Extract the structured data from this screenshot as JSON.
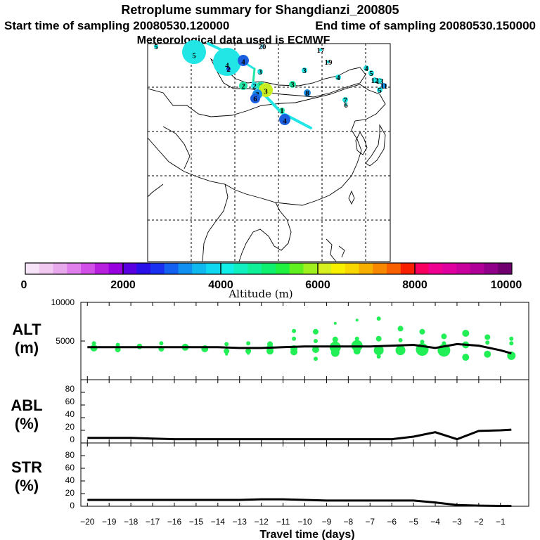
{
  "header": {
    "title": "Retroplume summary for Shangdianzi_200805",
    "start_label": "Start time of sampling 20080530.120000",
    "end_label": "End time of sampling 20080530.150000",
    "met_label": "Meteorological data used is ECMWF"
  },
  "map": {
    "markers": [
      {
        "label": "5",
        "r": 3,
        "color": "#00e8e8"
      },
      {
        "label": "5",
        "r": 17,
        "color": "#22e6e6"
      },
      {
        "label": "4",
        "r": 20,
        "color": "#22e6e6"
      },
      {
        "label": "4",
        "r": 8,
        "color": "#1a5fe0"
      },
      {
        "label": "2",
        "r": 3,
        "color": "#1a3fd0"
      },
      {
        "label": "20",
        "r": 3,
        "color": "#7fe0ff"
      },
      {
        "label": "17",
        "r": 2,
        "color": "#00e8e8"
      },
      {
        "label": "19",
        "r": 2,
        "color": "#00e8e8"
      },
      {
        "label": "3",
        "r": 4,
        "color": "#22e6e6"
      },
      {
        "label": "3",
        "r": 4,
        "color": "#22e6e6"
      },
      {
        "label": "4",
        "r": 4,
        "color": "#22e6e6"
      },
      {
        "label": "4",
        "r": 4,
        "color": "#22e6e6"
      },
      {
        "label": "5",
        "r": 4,
        "color": "#22e6e6"
      },
      {
        "label": "12",
        "r": 4,
        "color": "#22e6e6"
      },
      {
        "label": "13",
        "r": 4,
        "color": "#22e6e6"
      },
      {
        "label": "11",
        "r": 4,
        "color": "#1a8fe8"
      },
      {
        "label": "5",
        "r": 4,
        "color": "#22e6e6"
      },
      {
        "label": "2",
        "r": 6,
        "color": "#22e6a6"
      },
      {
        "label": "2",
        "r": 5,
        "color": "#22e6e6"
      },
      {
        "label": "2",
        "r": 6,
        "color": "#22e6a6"
      },
      {
        "label": "3",
        "r": 10,
        "color": "#c8ee22"
      },
      {
        "label": "3",
        "r": 7,
        "color": "#1a8fe8"
      },
      {
        "label": "6",
        "r": 7,
        "color": "#1a5fe0"
      },
      {
        "label": "3",
        "r": 5,
        "color": "#22e6a6"
      },
      {
        "label": "8",
        "r": 5,
        "color": "#1a8fe8"
      },
      {
        "label": "7",
        "r": 4,
        "color": "#22e6e6"
      },
      {
        "label": "6",
        "r": 2,
        "color": "#22e6e6"
      },
      {
        "label": "1",
        "r": 4,
        "color": "#22e6a6"
      },
      {
        "label": "4",
        "r": 8,
        "color": "#1a5fe0"
      }
    ]
  },
  "colorbar": {
    "colors": [
      "#f8e4f8",
      "#f0c8f0",
      "#e8a8ec",
      "#e080ec",
      "#d050e8",
      "#b820e0",
      "#9800e0",
      "#5a00e0",
      "#2a10e8",
      "#1a30f0",
      "#1460f0",
      "#1090f0",
      "#10b8f0",
      "#10d8f0",
      "#10f0e8",
      "#10f0c0",
      "#10f098",
      "#10f070",
      "#20f040",
      "#60f020",
      "#a0f020",
      "#d8f020",
      "#f8f000",
      "#f8d800",
      "#f8b000",
      "#f88800",
      "#f86000",
      "#f82000",
      "#f80060",
      "#f00090",
      "#e000a0",
      "#c8009c",
      "#b00098",
      "#900088",
      "#700070"
    ],
    "tick_labels": [
      "0",
      "2000",
      "4000",
      "6000",
      "8000",
      "10000"
    ],
    "label": "Altitude (m)"
  },
  "chart_data": [
    {
      "type": "line",
      "panel": "ALT",
      "label": "ALT",
      "unit": "(m)",
      "ylim": [
        0,
        10000
      ],
      "yticks": [
        "10000",
        "5000"
      ],
      "x": [
        -20,
        -19,
        -18,
        -17,
        -16,
        -15,
        -14,
        -13,
        -12,
        -11,
        -10,
        -9,
        -8,
        -7,
        -6,
        -5,
        -4,
        -3,
        -2,
        -1,
        -0.5
      ],
      "series": [
        {
          "name": "mean altitude",
          "values": [
            4200,
            4200,
            4200,
            4200,
            4200,
            4200,
            4200,
            4100,
            4100,
            4200,
            4300,
            4300,
            4300,
            4300,
            4400,
            4500,
            4100,
            4600,
            4400,
            3800,
            3400
          ]
        }
      ],
      "scatter": [
        {
          "x": -19.7,
          "y": 4700,
          "s": 3
        },
        {
          "x": -19.7,
          "y": 4100,
          "s": 5
        },
        {
          "x": -18.6,
          "y": 4500,
          "s": 3
        },
        {
          "x": -18.6,
          "y": 3900,
          "s": 4
        },
        {
          "x": -17.6,
          "y": 4300,
          "s": 4
        },
        {
          "x": -16.6,
          "y": 4700,
          "s": 3
        },
        {
          "x": -16.6,
          "y": 4000,
          "s": 4
        },
        {
          "x": -15.5,
          "y": 4200,
          "s": 5
        },
        {
          "x": -14.6,
          "y": 4000,
          "s": 5
        },
        {
          "x": -13.6,
          "y": 4600,
          "s": 3
        },
        {
          "x": -13.6,
          "y": 3700,
          "s": 4
        },
        {
          "x": -13.6,
          "y": 3300,
          "s": 2
        },
        {
          "x": -12.6,
          "y": 4700,
          "s": 3
        },
        {
          "x": -12.6,
          "y": 3700,
          "s": 4
        },
        {
          "x": -12.6,
          "y": 3400,
          "s": 2
        },
        {
          "x": -11.6,
          "y": 4600,
          "s": 4
        },
        {
          "x": -11.6,
          "y": 4100,
          "s": 5
        },
        {
          "x": -11.6,
          "y": 3700,
          "s": 5
        },
        {
          "x": -10.5,
          "y": 6300,
          "s": 3
        },
        {
          "x": -10.5,
          "y": 5300,
          "s": 3
        },
        {
          "x": -10.5,
          "y": 4000,
          "s": 5
        },
        {
          "x": -10.5,
          "y": 3600,
          "s": 5
        },
        {
          "x": -9.5,
          "y": 6200,
          "s": 4
        },
        {
          "x": -9.5,
          "y": 5000,
          "s": 3
        },
        {
          "x": -9.5,
          "y": 3900,
          "s": 5
        },
        {
          "x": -9.5,
          "y": 2700,
          "s": 3
        },
        {
          "x": -8.6,
          "y": 7300,
          "s": 2
        },
        {
          "x": -8.6,
          "y": 5200,
          "s": 4
        },
        {
          "x": -8.6,
          "y": 4200,
          "s": 8
        },
        {
          "x": -8.6,
          "y": 3500,
          "s": 6
        },
        {
          "x": -7.6,
          "y": 7700,
          "s": 2
        },
        {
          "x": -7.6,
          "y": 5300,
          "s": 3
        },
        {
          "x": -7.6,
          "y": 4400,
          "s": 8
        },
        {
          "x": -7.6,
          "y": 3700,
          "s": 5
        },
        {
          "x": -6.6,
          "y": 7900,
          "s": 3
        },
        {
          "x": -6.6,
          "y": 5300,
          "s": 4
        },
        {
          "x": -6.6,
          "y": 3800,
          "s": 7
        },
        {
          "x": -6.6,
          "y": 3000,
          "s": 3
        },
        {
          "x": -5.6,
          "y": 6600,
          "s": 4
        },
        {
          "x": -5.6,
          "y": 5100,
          "s": 3
        },
        {
          "x": -5.6,
          "y": 3800,
          "s": 7
        },
        {
          "x": -4.6,
          "y": 6200,
          "s": 4
        },
        {
          "x": -4.6,
          "y": 4900,
          "s": 3
        },
        {
          "x": -4.6,
          "y": 3900,
          "s": 9
        },
        {
          "x": -3.6,
          "y": 5600,
          "s": 4
        },
        {
          "x": -3.6,
          "y": 4700,
          "s": 3
        },
        {
          "x": -3.6,
          "y": 3800,
          "s": 9
        },
        {
          "x": -2.6,
          "y": 6000,
          "s": 5
        },
        {
          "x": -2.6,
          "y": 4500,
          "s": 5
        },
        {
          "x": -2.6,
          "y": 2900,
          "s": 5
        },
        {
          "x": -1.6,
          "y": 5500,
          "s": 4
        },
        {
          "x": -1.6,
          "y": 4800,
          "s": 3
        },
        {
          "x": -1.6,
          "y": 3300,
          "s": 5
        },
        {
          "x": -0.5,
          "y": 5300,
          "s": 3
        },
        {
          "x": -0.5,
          "y": 4700,
          "s": 3
        },
        {
          "x": -0.5,
          "y": 3100,
          "s": 6
        }
      ]
    },
    {
      "type": "line",
      "panel": "ABL",
      "label": "ABL",
      "unit": "(%)",
      "ylim": [
        0,
        100
      ],
      "yticks": [
        "80",
        "60",
        "40",
        "20",
        "0"
      ],
      "x": [
        -20,
        -19,
        -18,
        -17,
        -16,
        -15,
        -14,
        -13,
        -12,
        -11,
        -10,
        -9,
        -8,
        -7,
        -6,
        -5,
        -4,
        -3,
        -2,
        -1,
        -0.5
      ],
      "series": [
        {
          "name": "ABL fraction",
          "values": [
            8,
            8,
            8,
            7,
            6,
            6,
            6,
            6,
            6,
            6,
            6,
            6,
            6,
            6,
            6,
            10,
            17,
            6,
            19,
            20,
            21
          ]
        }
      ]
    },
    {
      "type": "line",
      "panel": "STR",
      "label": "STR",
      "unit": "(%)",
      "ylim": [
        0,
        100
      ],
      "yticks": [
        "80",
        "60",
        "40",
        "20",
        "0"
      ],
      "x": [
        -20,
        -19,
        -18,
        -17,
        -16,
        -15,
        -14,
        -13,
        -12,
        -11,
        -10,
        -9,
        -8,
        -7,
        -6,
        -5,
        -4,
        -3,
        -2,
        -1,
        -0.5
      ],
      "series": [
        {
          "name": "stratospheric fraction",
          "values": [
            10,
            10,
            10,
            10,
            10,
            10,
            10,
            10,
            11,
            11,
            10,
            9,
            9,
            9,
            9,
            9,
            6,
            2,
            1,
            0.5,
            0.5
          ]
        }
      ]
    }
  ],
  "xaxis": {
    "tick_labels": [
      "−20",
      "−19",
      "−18",
      "−17",
      "−16",
      "−15",
      "−14",
      "−13",
      "−12",
      "−11",
      "−10",
      "−9",
      "−8",
      "−7",
      "−6",
      "−5",
      "−4",
      "−3",
      "−2",
      "−1"
    ],
    "label": "Travel time (days)"
  },
  "colors": {
    "scatter": "#22ee55",
    "line": "#000000",
    "track": "#22e6e6"
  }
}
